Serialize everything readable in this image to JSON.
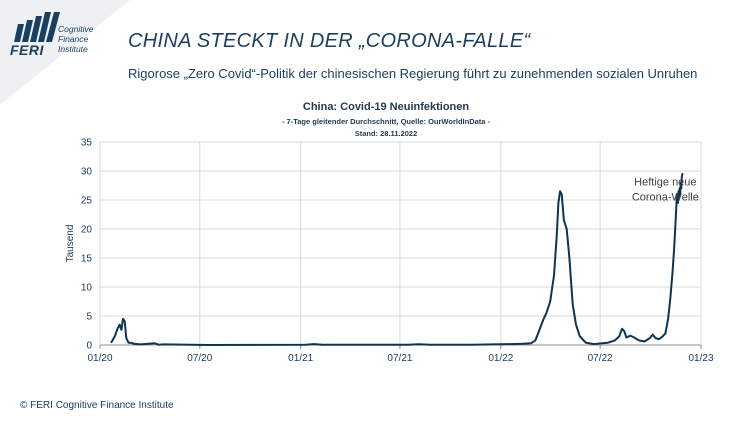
{
  "logo": {
    "brand": "FERI",
    "lines": [
      "Cognitive",
      "Finance",
      "Institute"
    ]
  },
  "header": {
    "title": "CHINA STECKT IN DER „CORONA-FALLE“",
    "subtitle": "Rigorose „Zero Covid“-Politik der chinesischen Regierung führt zu zunehmenden sozialen Unruhen"
  },
  "footer": {
    "copyright": "© FERI Cognitive Finance Institute"
  },
  "colors": {
    "line": "#0f3451",
    "text": "#1b3f60",
    "grid": "#d9d9d9",
    "band": "#eef0f3"
  },
  "chart_data": {
    "type": "line",
    "title": "China:  Covid-19 Neuinfektionen",
    "subtitle": "- 7-Tage gleitender Durchschnitt, Quelle: OurWorldInData -",
    "note": "Stand: 28.11.2022",
    "xlabel": "",
    "ylabel": "Tausend",
    "ylim": [
      0,
      35
    ],
    "yticks": [
      0,
      5,
      10,
      15,
      20,
      25,
      30,
      35
    ],
    "xlim": [
      "2020-01-01",
      "2023-01-01"
    ],
    "xticks": [
      {
        "date": "2020-01-01",
        "label": "01/20"
      },
      {
        "date": "2020-07-01",
        "label": "07/20"
      },
      {
        "date": "2021-01-01",
        "label": "01/21"
      },
      {
        "date": "2021-07-01",
        "label": "07/21"
      },
      {
        "date": "2022-01-01",
        "label": "01/22"
      },
      {
        "date": "2022-07-01",
        "label": "07/22"
      },
      {
        "date": "2023-01-01",
        "label": "01/23"
      }
    ],
    "grid": true,
    "annotation": {
      "lines": [
        "Heftige neue",
        "Corona-Welle"
      ],
      "date": "2022-10-28",
      "value": 27.5
    },
    "series": [
      {
        "name": "",
        "x": [
          "2020-01-22",
          "2020-01-28",
          "2020-02-02",
          "2020-02-06",
          "2020-02-09",
          "2020-02-12",
          "2020-02-15",
          "2020-02-18",
          "2020-02-22",
          "2020-02-26",
          "2020-03-03",
          "2020-03-15",
          "2020-04-10",
          "2020-04-17",
          "2020-04-25",
          "2020-06-15",
          "2020-07-15",
          "2021-01-10",
          "2021-01-25",
          "2021-02-10",
          "2021-07-15",
          "2021-08-05",
          "2021-08-25",
          "2021-11-10",
          "2021-12-15",
          "2022-01-20",
          "2022-02-10",
          "2022-02-25",
          "2022-03-05",
          "2022-03-12",
          "2022-03-20",
          "2022-03-25",
          "2022-04-01",
          "2022-04-08",
          "2022-04-13",
          "2022-04-16",
          "2022-04-19",
          "2022-04-22",
          "2022-04-26",
          "2022-05-01",
          "2022-05-06",
          "2022-05-12",
          "2022-05-18",
          "2022-05-25",
          "2022-06-05",
          "2022-06-20",
          "2022-07-05",
          "2022-07-15",
          "2022-07-28",
          "2022-08-05",
          "2022-08-10",
          "2022-08-14",
          "2022-08-18",
          "2022-08-25",
          "2022-09-01",
          "2022-09-10",
          "2022-09-20",
          "2022-09-30",
          "2022-10-05",
          "2022-10-10",
          "2022-10-16",
          "2022-10-22",
          "2022-10-28",
          "2022-11-02",
          "2022-11-06",
          "2022-11-10",
          "2022-11-13",
          "2022-11-16",
          "2022-11-18",
          "2022-11-20",
          "2022-11-21",
          "2022-11-22",
          "2022-11-23",
          "2022-11-24",
          "2022-11-25",
          "2022-11-26",
          "2022-11-27",
          "2022-11-28"
        ],
        "values": [
          0.5,
          1.5,
          2.8,
          3.5,
          2.6,
          4.5,
          4.1,
          1.2,
          0.4,
          0.4,
          0.2,
          0.1,
          0.3,
          0.05,
          0.1,
          0.05,
          0.0,
          0.05,
          0.15,
          0.05,
          0.05,
          0.12,
          0.05,
          0.05,
          0.1,
          0.15,
          0.2,
          0.3,
          0.8,
          2.5,
          4.5,
          5.5,
          7.5,
          12.0,
          19.0,
          24.5,
          26.5,
          26.0,
          21.5,
          20.0,
          15.0,
          7.0,
          3.5,
          1.5,
          0.4,
          0.15,
          0.3,
          0.4,
          0.8,
          1.5,
          2.8,
          2.4,
          1.3,
          1.6,
          1.3,
          0.8,
          0.6,
          1.2,
          1.8,
          1.2,
          1.0,
          1.4,
          2.0,
          4.5,
          8.0,
          12.5,
          16.5,
          22.0,
          26.0,
          24.5,
          26.5,
          25.5,
          27.0,
          26.0,
          28.0,
          27.0,
          29.0,
          29.5
        ]
      }
    ]
  }
}
